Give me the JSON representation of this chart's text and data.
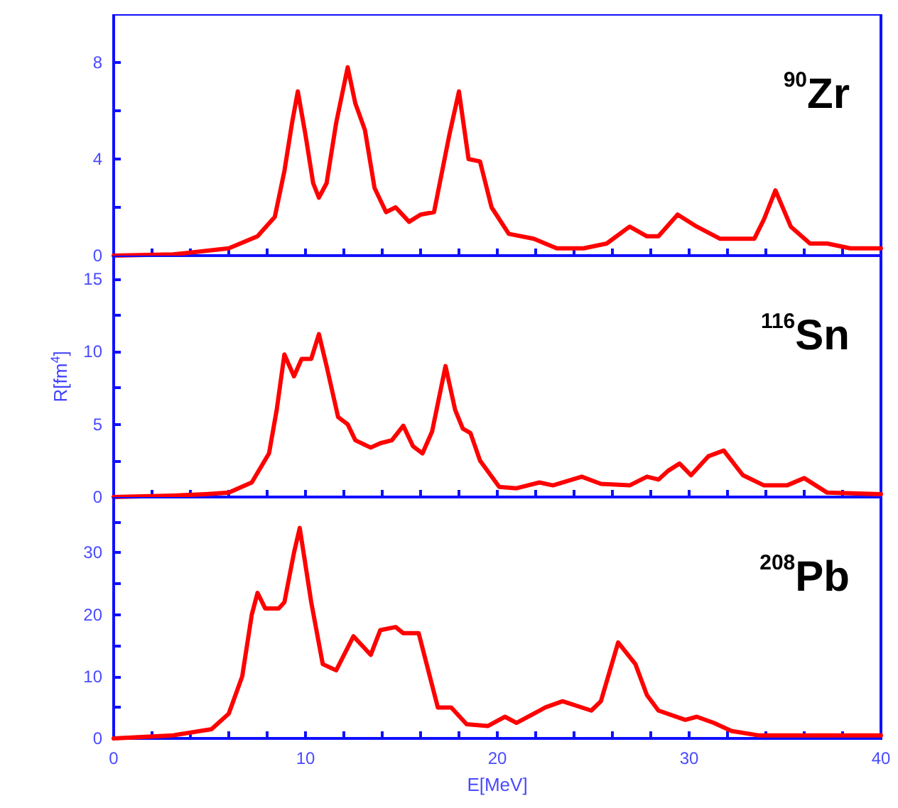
{
  "chart_data": [
    {
      "type": "line",
      "annotations": [
        "$^{90}$Zr"
      ],
      "xlim": [
        0,
        40
      ],
      "xticks": [
        0,
        {
          "value": 2,
          "label": null
        },
        {
          "value": 4,
          "label": null
        },
        {
          "value": 6,
          "label": null
        },
        {
          "value": 8,
          "label": null
        },
        10,
        {
          "value": 12,
          "label": null
        },
        {
          "value": 14,
          "label": null
        },
        {
          "value": 16,
          "label": null
        },
        {
          "value": 18,
          "label": null
        },
        20,
        {
          "value": 22,
          "label": null
        },
        {
          "value": 24,
          "label": null
        },
        {
          "value": 26,
          "label": null
        },
        {
          "value": 28,
          "label": null
        },
        30,
        {
          "value": 32,
          "label": null
        },
        {
          "value": 34,
          "label": null
        },
        {
          "value": 36,
          "label": null
        },
        {
          "value": 38,
          "label": null
        },
        40
      ],
      "ylim": [
        0,
        10
      ],
      "yticks": [
        0,
        {
          "value": 2,
          "label": null
        },
        4,
        {
          "value": 6,
          "label": null
        },
        8
      ],
      "tick_labels": "y",
      "marker": "none",
      "line_style": "solid",
      "grid": false,
      "x": [
        0,
        3.1,
        6,
        7.5,
        8.4,
        8.9,
        9.3,
        9.6,
        10,
        10.4,
        10.7,
        11.1,
        11.6,
        12.2,
        12.6,
        13.1,
        13.6,
        14.2,
        14.7,
        15.4,
        16,
        16.7,
        17.5,
        18,
        18.5,
        19.1,
        19.7,
        20.6,
        21.9,
        23.1,
        24.5,
        25.7,
        26.9,
        27.8,
        28.4,
        29.4,
        30.4,
        31.6,
        33.4,
        33.9,
        34.5,
        35.3,
        36.3,
        37.2,
        38.4,
        40
      ],
      "series": [
        {
          "color": "#ff0000",
          "values": [
            0,
            0.05,
            0.3,
            0.8,
            1.6,
            3.5,
            5.5,
            6.8,
            5,
            3,
            2.4,
            3,
            5.5,
            7.8,
            6.3,
            5.2,
            2.8,
            1.8,
            2,
            1.4,
            1.7,
            1.8,
            5,
            6.8,
            4,
            3.9,
            2,
            0.9,
            0.7,
            0.3,
            0.3,
            0.5,
            1.2,
            0.8,
            0.8,
            1.7,
            1.2,
            0.7,
            0.7,
            1.5,
            2.7,
            1.2,
            0.5,
            0.5,
            0.3,
            0.3
          ]
        }
      ]
    },
    {
      "type": "line",
      "annotations": [
        "$^{116}$Sn"
      ],
      "ylabel": "R[fm$^{4}$]",
      "xlim": [
        0,
        40
      ],
      "xticks": [
        0,
        {
          "value": 2,
          "label": null
        },
        {
          "value": 4,
          "label": null
        },
        {
          "value": 6,
          "label": null
        },
        {
          "value": 8,
          "label": null
        },
        10,
        {
          "value": 12,
          "label": null
        },
        {
          "value": 14,
          "label": null
        },
        {
          "value": 16,
          "label": null
        },
        {
          "value": 18,
          "label": null
        },
        20,
        {
          "value": 22,
          "label": null
        },
        {
          "value": 24,
          "label": null
        },
        {
          "value": 26,
          "label": null
        },
        {
          "value": 28,
          "label": null
        },
        30,
        {
          "value": 32,
          "label": null
        },
        {
          "value": 34,
          "label": null
        },
        {
          "value": 36,
          "label": null
        },
        {
          "value": 38,
          "label": null
        },
        40
      ],
      "ylim": [
        0,
        16.6
      ],
      "yticks": [
        0,
        {
          "value": 2.5,
          "label": null
        },
        5,
        {
          "value": 7.5,
          "label": null
        },
        10,
        {
          "value": 12.5,
          "label": null
        },
        15
      ],
      "tick_labels": "y",
      "marker": "none",
      "line_style": "solid",
      "grid": false,
      "x": [
        0,
        3.1,
        4.8,
        6,
        7.2,
        8.1,
        8.5,
        8.9,
        9.4,
        9.8,
        10.3,
        10.7,
        11.1,
        11.7,
        12.2,
        12.6,
        13.4,
        13.9,
        14.5,
        15.1,
        15.6,
        16.1,
        16.6,
        17.3,
        17.8,
        18.2,
        18.6,
        19.1,
        20.1,
        21,
        22.2,
        22.9,
        24.4,
        25.4,
        26.9,
        27.8,
        28.4,
        28.9,
        29.5,
        30.1,
        31,
        31.8,
        32.8,
        33.9,
        35.1,
        36,
        37.2,
        40
      ],
      "series": [
        {
          "color": "#ff0000",
          "values": [
            0,
            0.1,
            0.2,
            0.3,
            1,
            3,
            6,
            9.8,
            8.3,
            9.5,
            9.5,
            11.2,
            9,
            5.5,
            5,
            3.9,
            3.4,
            3.7,
            3.9,
            4.9,
            3.5,
            3,
            4.5,
            9,
            6,
            4.7,
            4.4,
            2.5,
            0.7,
            0.6,
            1,
            0.8,
            1.4,
            0.9,
            0.8,
            1.4,
            1.2,
            1.8,
            2.3,
            1.5,
            2.8,
            3.2,
            1.5,
            0.8,
            0.8,
            1.3,
            0.3,
            0.2
          ]
        }
      ]
    },
    {
      "type": "line",
      "annotations": [
        "$^{208}$Pb"
      ],
      "xlabel": "E[MeV]",
      "xlim": [
        0,
        40
      ],
      "xticks": [
        0,
        {
          "value": 2,
          "label": null
        },
        {
          "value": 4,
          "label": null
        },
        {
          "value": 6,
          "label": null
        },
        {
          "value": 8,
          "label": null
        },
        10,
        {
          "value": 12,
          "label": null
        },
        {
          "value": 14,
          "label": null
        },
        {
          "value": 16,
          "label": null
        },
        {
          "value": 18,
          "label": null
        },
        20,
        {
          "value": 22,
          "label": null
        },
        {
          "value": 24,
          "label": null
        },
        {
          "value": 26,
          "label": null
        },
        {
          "value": 28,
          "label": null
        },
        30,
        {
          "value": 32,
          "label": null
        },
        {
          "value": 34,
          "label": null
        },
        {
          "value": 36,
          "label": null
        },
        {
          "value": 38,
          "label": null
        },
        40
      ],
      "ylim": [
        0,
        39
      ],
      "yticks": [
        0,
        {
          "value": 5,
          "label": null
        },
        10,
        {
          "value": 15,
          "label": null
        },
        20,
        {
          "value": 25,
          "label": null
        },
        30,
        {
          "value": 35,
          "label": null
        }
      ],
      "marker": "none",
      "line_style": "solid",
      "grid": false,
      "x": [
        0,
        3.1,
        5.1,
        6,
        6.7,
        7.2,
        7.5,
        7.9,
        8.6,
        8.9,
        9.4,
        9.7,
        10.3,
        10.9,
        11.6,
        12.5,
        13.4,
        13.9,
        14.7,
        15.1,
        15.9,
        16.9,
        17.6,
        18.4,
        19.5,
        20.4,
        21,
        22.5,
        23.4,
        24.9,
        25.4,
        26.3,
        27.2,
        27.8,
        28.4,
        29.8,
        30.4,
        31.3,
        32.2,
        33.6,
        40
      ],
      "series": [
        {
          "color": "#ff0000",
          "values": [
            0,
            0.5,
            1.5,
            4,
            10,
            20,
            23.5,
            21,
            21,
            22,
            30,
            34,
            22,
            12,
            11,
            16.5,
            13.5,
            17.5,
            18,
            17,
            17,
            5,
            5,
            2.3,
            2,
            3.5,
            2.5,
            5,
            6,
            4.5,
            6,
            15.5,
            12,
            7,
            4.5,
            3,
            3.5,
            2.5,
            1.2,
            0.5,
            0.5
          ]
        }
      ]
    }
  ]
}
